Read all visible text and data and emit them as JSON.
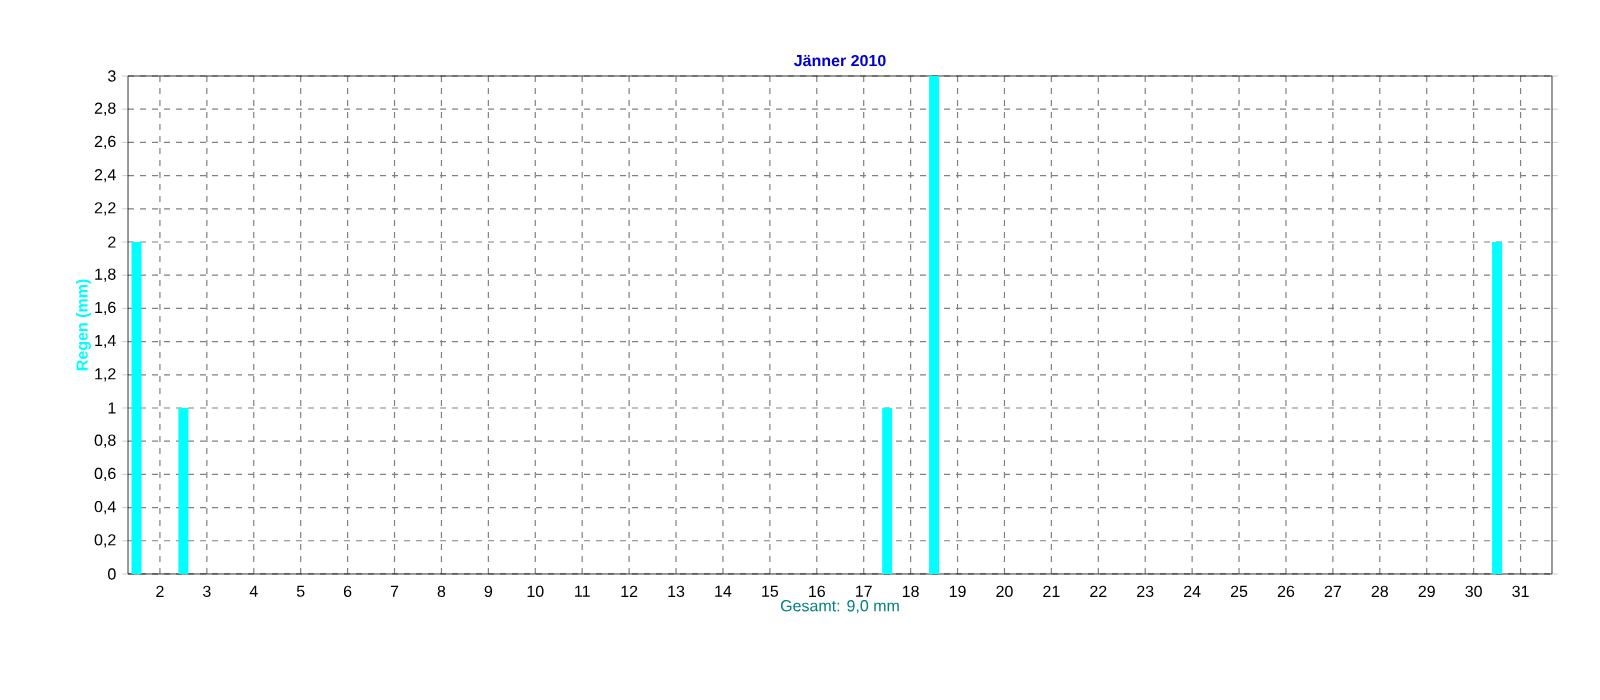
{
  "chart_data": {
    "type": "bar",
    "title": "Jänner 2010",
    "xlabel": "Gesamt: 9,0 mm",
    "ylabel": "Regen  (mm)",
    "x": [
      1.5,
      2.5,
      3.5,
      4.5,
      5.5,
      6.5,
      7.5,
      8.5,
      9.5,
      10.5,
      11.5,
      12.5,
      13.5,
      14.5,
      15.5,
      16.5,
      17.5,
      18.5,
      19.5,
      20.5,
      21.5,
      22.5,
      23.5,
      24.5,
      25.5,
      26.5,
      27.5,
      28.5,
      29.5,
      30.5,
      31.5
    ],
    "values": [
      2,
      1,
      0,
      0,
      0,
      0,
      0,
      0,
      0,
      0,
      0,
      0,
      0,
      0,
      0,
      0,
      1,
      3,
      0,
      0,
      0,
      0,
      0,
      0,
      0,
      0,
      0,
      0,
      0,
      2,
      0
    ],
    "color": "#00ffff",
    "xlim": [
      1.32,
      31.67
    ],
    "xticks": [
      2,
      3,
      4,
      5,
      6,
      7,
      8,
      9,
      10,
      11,
      12,
      13,
      14,
      15,
      16,
      17,
      18,
      19,
      20,
      21,
      22,
      23,
      24,
      25,
      26,
      27,
      28,
      29,
      30,
      31
    ],
    "ylim": [
      0,
      3
    ],
    "yticks": [
      0,
      {
        "value": 0.2,
        "label": "0,2"
      },
      {
        "value": 0.4,
        "label": "0,4"
      },
      {
        "value": 0.6,
        "label": "0,6"
      },
      {
        "value": 0.8,
        "label": "0,8"
      },
      1,
      {
        "value": 1.2,
        "label": "1,2"
      },
      {
        "value": 1.4,
        "label": "1,4"
      },
      {
        "value": 1.6,
        "label": "1,6"
      },
      {
        "value": 1.8,
        "label": "1,8"
      },
      2,
      {
        "value": 2.2,
        "label": "2,2"
      },
      {
        "value": 2.4,
        "label": "2,4"
      },
      {
        "value": 2.6,
        "label": "2,6"
      },
      {
        "value": 2.8,
        "label": "2,8"
      },
      3
    ],
    "grid": true
  }
}
